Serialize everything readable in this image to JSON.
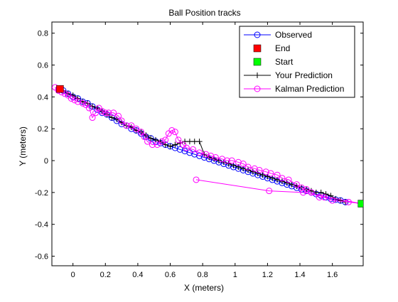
{
  "chart_data": {
    "type": "line",
    "title": "Ball Position tracks",
    "xlabel": "X (meters)",
    "ylabel": "Y (meters)",
    "xlim": [
      -0.13,
      1.79
    ],
    "ylim": [
      -0.66,
      0.87
    ],
    "xticks": [
      0,
      0.2,
      0.4,
      0.6,
      0.8,
      1,
      1.2,
      1.4,
      1.6
    ],
    "yticks": [
      -0.6,
      -0.4,
      -0.2,
      0,
      0.2,
      0.4,
      0.6,
      0.8
    ],
    "xtick_labels": [
      "0",
      "0.2",
      "0.4",
      "0.6",
      "0.8",
      "1",
      "1.2",
      "1.4",
      "1.6"
    ],
    "ytick_labels": [
      "-0.6",
      "-0.4",
      "-0.2",
      "0",
      "0.2",
      "0.4",
      "0.6",
      "0.8"
    ],
    "grid": false,
    "legend_position": "top-right",
    "series": [
      {
        "name": "Observed",
        "color": "#0000ff",
        "marker": "circle",
        "line": true,
        "points": [
          [
            -0.08,
            0.45
          ],
          [
            -0.06,
            0.44
          ],
          [
            -0.03,
            0.42
          ],
          [
            0.0,
            0.4
          ],
          [
            0.03,
            0.39
          ],
          [
            0.06,
            0.37
          ],
          [
            0.09,
            0.36
          ],
          [
            0.12,
            0.34
          ],
          [
            0.15,
            0.32
          ],
          [
            0.18,
            0.3
          ],
          [
            0.21,
            0.29
          ],
          [
            0.24,
            0.27
          ],
          [
            0.27,
            0.25
          ],
          [
            0.3,
            0.23
          ],
          [
            0.33,
            0.22
          ],
          [
            0.36,
            0.2
          ],
          [
            0.39,
            0.19
          ],
          [
            0.42,
            0.17
          ],
          [
            0.45,
            0.15
          ],
          [
            0.48,
            0.14
          ],
          [
            0.51,
            0.12
          ],
          [
            0.54,
            0.11
          ],
          [
            0.57,
            0.1
          ],
          [
            0.6,
            0.09
          ],
          [
            0.63,
            0.08
          ],
          [
            0.66,
            0.07
          ],
          [
            0.69,
            0.06
          ],
          [
            0.72,
            0.05
          ],
          [
            0.75,
            0.04
          ],
          [
            0.78,
            0.03
          ],
          [
            0.81,
            0.02
          ],
          [
            0.84,
            0.01
          ],
          [
            0.87,
            0.0
          ],
          [
            0.9,
            -0.01
          ],
          [
            0.93,
            -0.02
          ],
          [
            0.96,
            -0.03
          ],
          [
            0.99,
            -0.04
          ],
          [
            1.02,
            -0.05
          ],
          [
            1.05,
            -0.06
          ],
          [
            1.08,
            -0.07
          ],
          [
            1.11,
            -0.08
          ],
          [
            1.14,
            -0.09
          ],
          [
            1.17,
            -0.1
          ],
          [
            1.2,
            -0.11
          ],
          [
            1.23,
            -0.12
          ],
          [
            1.26,
            -0.13
          ],
          [
            1.29,
            -0.14
          ],
          [
            1.32,
            -0.15
          ],
          [
            1.35,
            -0.16
          ],
          [
            1.38,
            -0.17
          ],
          [
            1.41,
            -0.18
          ],
          [
            1.44,
            -0.19
          ],
          [
            1.47,
            -0.2
          ],
          [
            1.5,
            -0.21
          ],
          [
            1.53,
            -0.22
          ],
          [
            1.56,
            -0.23
          ],
          [
            1.59,
            -0.24
          ],
          [
            1.62,
            -0.245
          ],
          [
            1.65,
            -0.25
          ],
          [
            1.68,
            -0.26
          ]
        ]
      },
      {
        "name": "End",
        "color": "#ff0000",
        "marker": "square",
        "line": false,
        "points": [
          [
            -0.08,
            0.45
          ]
        ]
      },
      {
        "name": "Start",
        "color": "#00ff00",
        "marker": "square",
        "line": false,
        "points": [
          [
            1.78,
            -0.27
          ]
        ]
      },
      {
        "name": "Your Prediction",
        "color": "#000000",
        "marker": "plus",
        "line": true,
        "points": [
          [
            -0.06,
            0.44
          ],
          [
            -0.03,
            0.42
          ],
          [
            0.0,
            0.41
          ],
          [
            0.03,
            0.39
          ],
          [
            0.06,
            0.37
          ],
          [
            0.09,
            0.36
          ],
          [
            0.12,
            0.34
          ],
          [
            0.15,
            0.33
          ],
          [
            0.18,
            0.31
          ],
          [
            0.21,
            0.29
          ],
          [
            0.24,
            0.27
          ],
          [
            0.27,
            0.26
          ],
          [
            0.3,
            0.24
          ],
          [
            0.33,
            0.22
          ],
          [
            0.36,
            0.21
          ],
          [
            0.39,
            0.19
          ],
          [
            0.42,
            0.18
          ],
          [
            0.45,
            0.16
          ],
          [
            0.48,
            0.14
          ],
          [
            0.51,
            0.13
          ],
          [
            0.54,
            0.12
          ],
          [
            0.57,
            0.1
          ],
          [
            0.6,
            0.09
          ],
          [
            0.63,
            0.1
          ],
          [
            0.66,
            0.11
          ],
          [
            0.69,
            0.12
          ],
          [
            0.72,
            0.12
          ],
          [
            0.75,
            0.12
          ],
          [
            0.78,
            0.12
          ],
          [
            0.81,
            0.04
          ],
          [
            0.84,
            0.02
          ],
          [
            0.87,
            0.01
          ],
          [
            0.9,
            0.0
          ],
          [
            0.93,
            -0.01
          ],
          [
            0.96,
            -0.02
          ],
          [
            0.99,
            -0.03
          ],
          [
            1.02,
            -0.04
          ],
          [
            1.05,
            -0.05
          ],
          [
            1.08,
            -0.06
          ],
          [
            1.11,
            -0.07
          ],
          [
            1.14,
            -0.08
          ],
          [
            1.17,
            -0.09
          ],
          [
            1.2,
            -0.1
          ],
          [
            1.23,
            -0.11
          ],
          [
            1.26,
            -0.12
          ],
          [
            1.29,
            -0.13
          ],
          [
            1.32,
            -0.14
          ],
          [
            1.35,
            -0.15
          ],
          [
            1.38,
            -0.16
          ],
          [
            1.41,
            -0.17
          ],
          [
            1.44,
            -0.18
          ],
          [
            1.47,
            -0.19
          ],
          [
            1.5,
            -0.2
          ],
          [
            1.53,
            -0.2
          ],
          [
            1.56,
            -0.21
          ],
          [
            1.59,
            -0.22
          ],
          [
            1.62,
            -0.24
          ],
          [
            1.65,
            -0.25
          ],
          [
            1.68,
            -0.26
          ]
        ]
      },
      {
        "name": "Kalman Prediction",
        "color": "#ff00ff",
        "marker": "circle",
        "line": true,
        "points": [
          [
            0.76,
            -0.12
          ],
          [
            1.21,
            -0.19
          ],
          [
            1.42,
            -0.2
          ],
          [
            1.78,
            -0.27
          ],
          [
            1.7,
            -0.26
          ],
          [
            1.6,
            -0.25
          ],
          [
            1.55,
            -0.23
          ],
          [
            1.52,
            -0.23
          ],
          [
            1.47,
            -0.2
          ],
          [
            1.44,
            -0.18
          ],
          [
            1.41,
            -0.17
          ],
          [
            1.38,
            -0.15
          ],
          [
            1.33,
            -0.12
          ],
          [
            1.29,
            -0.11
          ],
          [
            1.26,
            -0.09
          ],
          [
            1.22,
            -0.08
          ],
          [
            1.19,
            -0.07
          ],
          [
            1.15,
            -0.06
          ],
          [
            1.12,
            -0.05
          ],
          [
            1.08,
            -0.04
          ],
          [
            1.05,
            -0.02
          ],
          [
            1.02,
            -0.01
          ],
          [
            0.98,
            0.0
          ],
          [
            0.95,
            0.0
          ],
          [
            0.92,
            0.01
          ],
          [
            0.88,
            0.02
          ],
          [
            0.85,
            0.03
          ],
          [
            0.82,
            0.04
          ],
          [
            0.78,
            0.05
          ],
          [
            0.74,
            0.07
          ],
          [
            0.7,
            0.08
          ],
          [
            0.68,
            0.1
          ],
          [
            0.65,
            0.13
          ],
          [
            0.63,
            0.18
          ],
          [
            0.61,
            0.19
          ],
          [
            0.59,
            0.17
          ],
          [
            0.57,
            0.13
          ],
          [
            0.55,
            0.12
          ],
          [
            0.52,
            0.1
          ],
          [
            0.49,
            0.1
          ],
          [
            0.46,
            0.12
          ],
          [
            0.44,
            0.15
          ],
          [
            0.42,
            0.18
          ],
          [
            0.39,
            0.2
          ],
          [
            0.36,
            0.22
          ],
          [
            0.33,
            0.22
          ],
          [
            0.3,
            0.25
          ],
          [
            0.28,
            0.28
          ],
          [
            0.25,
            0.3
          ],
          [
            0.22,
            0.3
          ],
          [
            0.2,
            0.3
          ],
          [
            0.18,
            0.31
          ],
          [
            0.16,
            0.33
          ],
          [
            0.14,
            0.3
          ],
          [
            0.12,
            0.27
          ],
          [
            0.1,
            0.33
          ],
          [
            0.08,
            0.35
          ],
          [
            0.06,
            0.36
          ],
          [
            0.03,
            0.37
          ],
          [
            0.01,
            0.38
          ],
          [
            -0.01,
            0.39
          ],
          [
            -0.03,
            0.41
          ],
          [
            -0.05,
            0.42
          ],
          [
            -0.07,
            0.43
          ],
          [
            -0.09,
            0.45
          ],
          [
            -0.11,
            0.46
          ],
          [
            -0.09,
            0.44
          ]
        ]
      }
    ]
  }
}
